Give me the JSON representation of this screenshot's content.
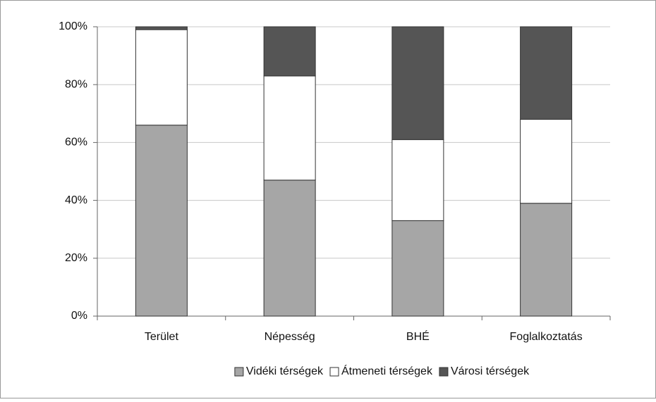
{
  "chart_data": {
    "type": "stacked_bar",
    "categories": [
      "Terület",
      "Népesség",
      "BHÉ",
      "Foglalkoztatás"
    ],
    "series": [
      {
        "name": "Vidéki térségek",
        "color": "#a6a6a6",
        "values": [
          66,
          47,
          33,
          39
        ]
      },
      {
        "name": "Átmeneti térségek",
        "color": "#ffffff",
        "values": [
          33,
          36,
          28,
          29
        ]
      },
      {
        "name": "Városi térségek",
        "color": "#555555",
        "values": [
          1,
          17,
          39,
          32
        ]
      }
    ],
    "ylim": [
      0,
      100
    ],
    "yticks": [
      {
        "value": 0,
        "label": "0%"
      },
      {
        "value": 20,
        "label": "20%"
      },
      {
        "value": 40,
        "label": "40%"
      },
      {
        "value": 60,
        "label": "60%"
      },
      {
        "value": 80,
        "label": "80%"
      },
      {
        "value": 100,
        "label": "100%"
      }
    ],
    "grid": true,
    "legend": "bottom"
  }
}
